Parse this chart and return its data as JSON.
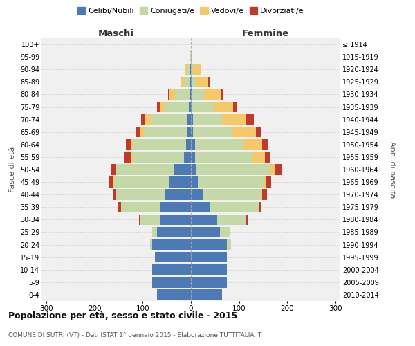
{
  "age_groups": [
    "0-4",
    "5-9",
    "10-14",
    "15-19",
    "20-24",
    "25-29",
    "30-34",
    "35-39",
    "40-44",
    "45-49",
    "50-54",
    "55-59",
    "60-64",
    "65-69",
    "70-74",
    "75-79",
    "80-84",
    "85-89",
    "90-94",
    "95-99",
    "100+"
  ],
  "birth_years": [
    "2010-2014",
    "2005-2009",
    "2000-2004",
    "1995-1999",
    "1990-1994",
    "1985-1989",
    "1980-1984",
    "1975-1979",
    "1970-1974",
    "1965-1969",
    "1960-1964",
    "1955-1959",
    "1950-1954",
    "1945-1949",
    "1940-1944",
    "1935-1939",
    "1930-1934",
    "1925-1929",
    "1920-1924",
    "1915-1919",
    "≤ 1914"
  ],
  "maschi": {
    "celibi": [
      70,
      80,
      80,
      75,
      80,
      70,
      65,
      65,
      55,
      45,
      35,
      15,
      10,
      8,
      8,
      5,
      3,
      2,
      1,
      0,
      0
    ],
    "coniugati": [
      0,
      0,
      0,
      0,
      5,
      10,
      40,
      80,
      100,
      115,
      120,
      105,
      110,
      90,
      75,
      50,
      30,
      12,
      6,
      1,
      0
    ],
    "vedovi": [
      0,
      0,
      0,
      0,
      0,
      0,
      0,
      0,
      1,
      2,
      2,
      3,
      5,
      8,
      12,
      10,
      12,
      8,
      5,
      1,
      0
    ],
    "divorziati": [
      0,
      0,
      0,
      0,
      0,
      0,
      3,
      5,
      5,
      8,
      8,
      15,
      10,
      8,
      8,
      5,
      3,
      0,
      0,
      0,
      0
    ]
  },
  "femmine": {
    "nubili": [
      65,
      75,
      75,
      75,
      75,
      60,
      55,
      40,
      25,
      15,
      10,
      8,
      8,
      5,
      5,
      3,
      2,
      1,
      0,
      0,
      0
    ],
    "coniugate": [
      0,
      0,
      0,
      0,
      8,
      20,
      60,
      100,
      120,
      135,
      155,
      120,
      100,
      80,
      60,
      45,
      25,
      10,
      5,
      0,
      0
    ],
    "vedove": [
      0,
      0,
      0,
      0,
      0,
      0,
      0,
      2,
      3,
      5,
      8,
      25,
      40,
      50,
      50,
      40,
      35,
      25,
      15,
      2,
      0
    ],
    "divorziate": [
      0,
      0,
      0,
      0,
      0,
      0,
      3,
      5,
      10,
      12,
      15,
      12,
      12,
      10,
      15,
      8,
      5,
      3,
      2,
      0,
      0
    ]
  },
  "colors": {
    "celibi": "#4d7ab5",
    "coniugati": "#c5d9a8",
    "vedovi": "#f5c96a",
    "divorziati": "#c0392b"
  },
  "xlim": 310,
  "title": "Popolazione per età, sesso e stato civile - 2015",
  "subtitle": "COMUNE DI SUTRI (VT) - Dati ISTAT 1° gennaio 2015 - Elaborazione TUTTITALIA.IT",
  "xlabel_left": "Maschi",
  "xlabel_right": "Femmine",
  "ylabel_left": "Fasce di età",
  "ylabel_right": "Anni di nascita",
  "legend_labels": [
    "Celibi/Nubili",
    "Coniugati/e",
    "Vedovi/e",
    "Divorziati/e"
  ],
  "background_color": "#f0f0f0",
  "grid_color": "#cccccc"
}
